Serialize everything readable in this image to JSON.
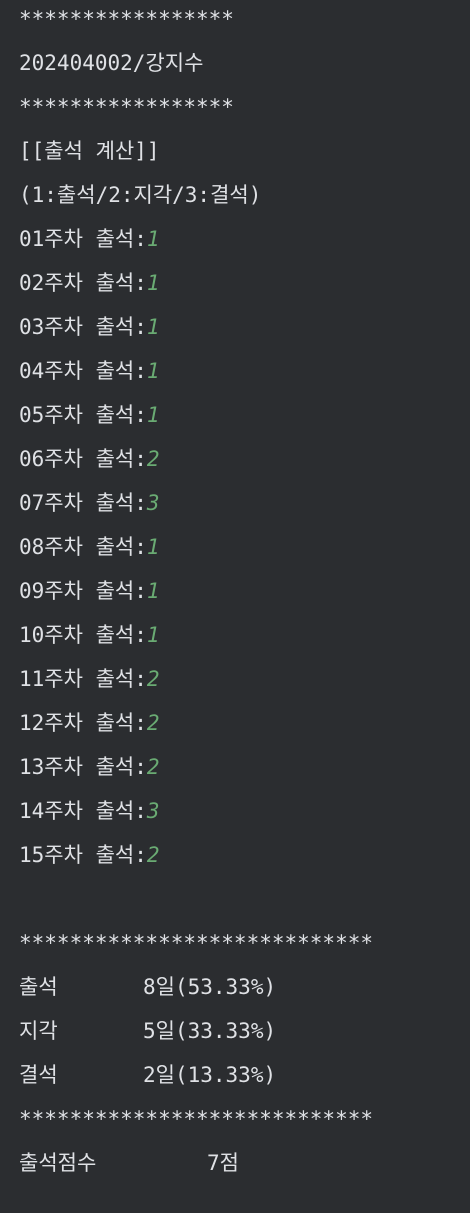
{
  "console": {
    "stars_short": "*****************",
    "student": "202404002/강지수",
    "stars_short2": "*****************",
    "title": "[[출석 계산]]",
    "legend": "(1:출석/2:지각/3:결석)",
    "weeks": [
      {
        "label": "01주차 출석:",
        "input": "1"
      },
      {
        "label": "02주차 출석:",
        "input": "1"
      },
      {
        "label": "03주차 출석:",
        "input": "1"
      },
      {
        "label": "04주차 출석:",
        "input": "1"
      },
      {
        "label": "05주차 출석:",
        "input": "1"
      },
      {
        "label": "06주차 출석:",
        "input": "2"
      },
      {
        "label": "07주차 출석:",
        "input": "3"
      },
      {
        "label": "08주차 출석:",
        "input": "1"
      },
      {
        "label": "09주차 출석:",
        "input": "1"
      },
      {
        "label": "10주차 출석:",
        "input": "1"
      },
      {
        "label": "11주차 출석:",
        "input": "2"
      },
      {
        "label": "12주차 출석:",
        "input": "2"
      },
      {
        "label": "13주차 출석:",
        "input": "2"
      },
      {
        "label": "14주차 출석:",
        "input": "3"
      },
      {
        "label": "15주차 출석:",
        "input": "2"
      }
    ],
    "stars_long": "****************************",
    "summary": [
      {
        "label": "출석",
        "value": "8일(53.33%)"
      },
      {
        "label": "지각",
        "value": "5일(33.33%)"
      },
      {
        "label": "결석",
        "value": "2일(13.33%)"
      }
    ],
    "stars_long2": "****************************",
    "score_label": "출석점수",
    "score_value": "7점"
  },
  "colors": {
    "background": "#2b2d30",
    "text": "#dfe1e5",
    "input": "#6aab73"
  }
}
